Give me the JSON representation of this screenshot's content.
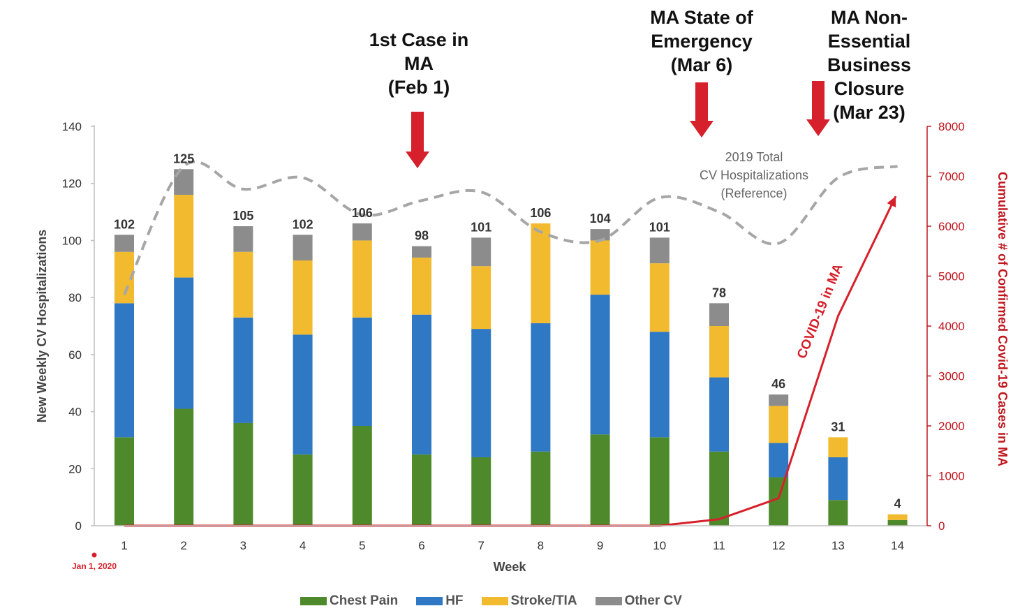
{
  "chart_data": {
    "type": "bar",
    "stacked": true,
    "categories": [
      "1",
      "2",
      "3",
      "4",
      "5",
      "6",
      "7",
      "8",
      "9",
      "10",
      "11",
      "12",
      "13",
      "14"
    ],
    "series": [
      {
        "name": "Chest Pain",
        "color": "#4e8a2b",
        "values": [
          31,
          41,
          36,
          25,
          35,
          25,
          24,
          26,
          32,
          31,
          26,
          17,
          9,
          2
        ]
      },
      {
        "name": "HF",
        "color": "#2f78c4",
        "values": [
          47,
          46,
          37,
          42,
          38,
          49,
          45,
          45,
          49,
          37,
          26,
          12,
          15,
          0
        ]
      },
      {
        "name": "Stroke/TIA",
        "color": "#f2bb2f",
        "values": [
          18,
          29,
          23,
          26,
          27,
          20,
          22,
          35,
          19,
          24,
          18,
          13,
          7,
          2
        ]
      },
      {
        "name": "Other CV",
        "color": "#8c8c8c",
        "values": [
          6,
          9,
          9,
          9,
          6,
          4,
          10,
          0,
          4,
          9,
          8,
          4,
          0,
          0
        ]
      }
    ],
    "totals": [
      102,
      125,
      105,
      102,
      106,
      98,
      101,
      106,
      104,
      101,
      78,
      46,
      31,
      4
    ],
    "xlabel": "Week",
    "ylabel": "New Weekly CV Hospitalizations",
    "ylim": [
      0,
      140
    ],
    "yticks": [
      0,
      20,
      40,
      60,
      80,
      100,
      120,
      140
    ],
    "y2label": "Cumulative # of Confirmed Covid-19 Cases in MA",
    "y2lim": [
      0,
      8000
    ],
    "y2ticks": [
      0,
      1000,
      2000,
      3000,
      4000,
      5000,
      6000,
      7000,
      8000
    ],
    "y2color": "#c0171f",
    "reference_line": {
      "label_lines": [
        "2019 Total",
        "CV Hospitalizations",
        "(Reference)"
      ],
      "color": "#a6a6a6",
      "x": [
        1,
        2,
        3,
        4,
        5,
        6,
        7,
        8,
        9,
        10,
        11,
        12,
        13,
        14
      ],
      "y": [
        81,
        126,
        118,
        122,
        109,
        114,
        117,
        103,
        100,
        115,
        110,
        99,
        122,
        126
      ]
    },
    "covid_line": {
      "label": "COVID-19 in MA",
      "color": "#d6202b",
      "x": [
        1,
        2,
        3,
        4,
        5,
        6,
        7,
        8,
        9,
        10,
        11,
        12,
        13,
        13.97
      ],
      "y": [
        0,
        0,
        0,
        0,
        0,
        0,
        0,
        0,
        0,
        0,
        130,
        550,
        4200,
        6600
      ]
    },
    "x_origin_label": "Jan 1, 2020",
    "annotations": [
      {
        "lines": [
          "1st  Case in",
          "MA",
          "(Feb 1)"
        ]
      },
      {
        "lines": [
          "MA State of",
          "Emergency",
          "(Mar 6)"
        ]
      },
      {
        "lines": [
          "MA Non-",
          "Essential",
          "Business",
          "Closure",
          "(Mar 23)"
        ]
      }
    ],
    "arrow_color": "#d6202b",
    "grid": false,
    "legend_position": "bottom"
  }
}
